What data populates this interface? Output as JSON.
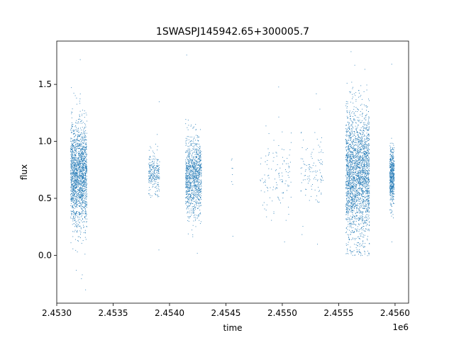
{
  "chart_data": {
    "type": "scatter",
    "title": "1SWASPJ145942.65+300005.7",
    "xlabel": "time",
    "ylabel": "flux",
    "x_offset_label": "1e6",
    "xlim": [
      2453000,
      2456120
    ],
    "ylim": [
      -0.42,
      1.88
    ],
    "x_ticks": [
      2453000,
      2453500,
      2454000,
      2454500,
      2455000,
      2455500,
      2456000
    ],
    "x_tick_labels": [
      "2.4530",
      "2.4535",
      "2.4540",
      "2.4545",
      "2.4550",
      "2.4555",
      "2.4560"
    ],
    "y_ticks": [
      0.0,
      0.5,
      1.0,
      1.5
    ],
    "y_tick_labels": [
      "0.0",
      "0.5",
      "1.0",
      "1.5"
    ],
    "grid": false,
    "marker_color": "#1f77b4",
    "observing_seasons": [
      {
        "x_start": 2453120,
        "x_end": 2453265,
        "y_center": 0.72,
        "y_spread": 0.22,
        "y_min": -0.3,
        "y_max": 1.72,
        "points": 1800
      },
      {
        "x_start": 2453810,
        "x_end": 2453910,
        "y_center": 0.72,
        "y_spread": 0.09,
        "y_min": 0.05,
        "y_max": 1.35,
        "points": 250
      },
      {
        "x_start": 2454140,
        "x_end": 2454280,
        "y_center": 0.7,
        "y_spread": 0.17,
        "y_min": 0.02,
        "y_max": 1.76,
        "points": 1100
      },
      {
        "x_start": 2454545,
        "x_end": 2454560,
        "y_center": 0.62,
        "y_spread": 0.13,
        "y_min": 0.17,
        "y_max": 0.85,
        "points": 6
      },
      {
        "x_start": 2454800,
        "x_end": 2455080,
        "y_center": 0.7,
        "y_spread": 0.18,
        "y_min": 0.12,
        "y_max": 1.48,
        "points": 120
      },
      {
        "x_start": 2455160,
        "x_end": 2455360,
        "y_center": 0.74,
        "y_spread": 0.18,
        "y_min": 0.1,
        "y_max": 1.42,
        "points": 110
      },
      {
        "x_start": 2455560,
        "x_end": 2455770,
        "y_center": 0.72,
        "y_spread": 0.28,
        "y_min": 0.0,
        "y_max": 1.79,
        "points": 2400
      },
      {
        "x_start": 2455950,
        "x_end": 2455990,
        "y_center": 0.7,
        "y_spread": 0.12,
        "y_min": 0.12,
        "y_max": 1.68,
        "points": 500
      }
    ]
  }
}
